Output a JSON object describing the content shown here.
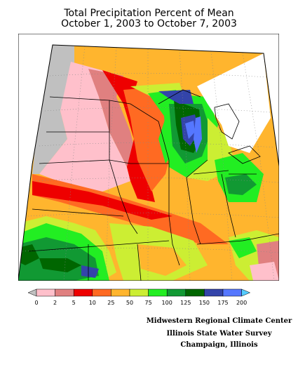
{
  "title_line1": "Total Precipitation Percent of Mean",
  "title_line2": "October 1, 2003 to October 7, 2003",
  "legend": {
    "ticks": [
      "0",
      "2",
      "5",
      "10",
      "25",
      "50",
      "75",
      "100",
      "125",
      "150",
      "175",
      "200"
    ],
    "colors": [
      "#c0c0c0",
      "#ffc0cb",
      "#e08080",
      "#ee0000",
      "#ff6a22",
      "#ffb52e",
      "#ccee33",
      "#22ee22",
      "#119933",
      "#006600",
      "#3344aa",
      "#5577ff",
      "#55ccff"
    ]
  },
  "credits": {
    "line1": "Midwestern Regional Climate Center",
    "line2": "Illinois State Water Survey",
    "line3": "Champaign, Illinois"
  }
}
